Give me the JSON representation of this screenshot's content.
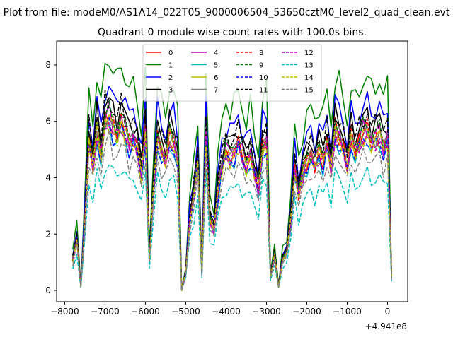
{
  "figure": {
    "suptitle": "Plot from file: modeM0/AS1A14_022T05_9000006504_53650cztM0_level2_quad_clean.evt",
    "offset_label": "+4.941e8"
  },
  "chart_data": {
    "type": "line",
    "title": "Quadrant 0 module wise count rates with 100.0s bins.",
    "xlabel": "",
    "ylabel": "",
    "x_offset": 494100000,
    "xlim": [
      -8200,
      500
    ],
    "ylim": [
      -0.4,
      8.85
    ],
    "xticks": [
      -8000,
      -7000,
      -6000,
      -5000,
      -4000,
      -3000,
      -2000,
      -1000,
      0
    ],
    "xtick_labels": [
      "−8000",
      "−7000",
      "−6000",
      "−5000",
      "−4000",
      "−3000",
      "−2000",
      "−1000",
      "0"
    ],
    "yticks": [
      0,
      2,
      4,
      6,
      8
    ],
    "ytick_labels": [
      "0",
      "2",
      "4",
      "6",
      "8"
    ],
    "grid": false,
    "legend_position": "top-center",
    "legend_columns": 4,
    "profile": {
      "note": "Shared shape of the light curves (x in data units, relative to offset)",
      "x": [
        -7800,
        -7700,
        -7600,
        -7500,
        -7400,
        -7300,
        -7200,
        -7100,
        -7000,
        -6900,
        -6800,
        -6700,
        -6600,
        -6500,
        -6400,
        -6300,
        -6200,
        -6100,
        -6000,
        -5900,
        -5800,
        -5700,
        -5600,
        -5500,
        -5400,
        -5300,
        -5200,
        -5100,
        -5000,
        -4900,
        -4800,
        -4700,
        -4600,
        -4500,
        -4400,
        -4300,
        -4200,
        -4100,
        -4000,
        -3900,
        -3800,
        -3700,
        -3600,
        -3500,
        -3400,
        -3300,
        -3200,
        -3100,
        -3000,
        -2900,
        -2800,
        -2700,
        -2600,
        -2500,
        -2400,
        -2300,
        -2200,
        -2100,
        -2000,
        -1900,
        -1800,
        -1700,
        -1600,
        -1500,
        -1400,
        -1300,
        -1200,
        -1100,
        -1000,
        -900,
        -800,
        -700,
        -600,
        -500,
        -400,
        -300,
        -200,
        -100,
        0,
        100
      ],
      "y": [
        0.17,
        0.3,
        0.02,
        0.4,
        0.85,
        0.72,
        0.92,
        0.78,
        0.97,
        1.0,
        0.93,
        0.9,
        0.97,
        0.92,
        0.85,
        0.88,
        0.82,
        0.68,
        0.92,
        0.18,
        0.58,
        0.88,
        0.8,
        0.75,
        0.88,
        0.85,
        0.75,
        0.0,
        0.1,
        0.4,
        0.55,
        0.75,
        0.1,
        0.9,
        0.4,
        0.35,
        0.58,
        0.72,
        0.8,
        0.78,
        0.8,
        0.85,
        0.78,
        0.72,
        0.78,
        0.68,
        0.58,
        0.82,
        0.85,
        0.08,
        0.2,
        0.02,
        0.18,
        0.22,
        0.4,
        0.7,
        0.55,
        0.68,
        0.75,
        0.78,
        0.72,
        0.8,
        0.75,
        0.85,
        0.7,
        0.92,
        0.88,
        0.82,
        0.72,
        0.88,
        0.8,
        0.85,
        0.9,
        0.92,
        0.85,
        0.88,
        0.9,
        0.82,
        0.88,
        0.07
      ]
    },
    "series": [
      {
        "name": "0",
        "color": "#ff0000",
        "dashed": false,
        "scale": 6.1,
        "phase": 0.7
      },
      {
        "name": "1",
        "color": "#008000",
        "dashed": false,
        "scale": 8.3,
        "phase": 1.9
      },
      {
        "name": "2",
        "color": "#0000ff",
        "dashed": false,
        "scale": 7.3,
        "phase": 3.1
      },
      {
        "name": "3",
        "color": "#000000",
        "dashed": false,
        "scale": 6.8,
        "phase": 4.3
      },
      {
        "name": "4",
        "color": "#bf00bf",
        "dashed": false,
        "scale": 6.3,
        "phase": 5.5
      },
      {
        "name": "5",
        "color": "#00bfbf",
        "dashed": false,
        "scale": 5.8,
        "phase": 0.2
      },
      {
        "name": "6",
        "color": "#bfbf00",
        "dashed": false,
        "scale": 6.0,
        "phase": 1.4
      },
      {
        "name": "7",
        "color": "#808080",
        "dashed": false,
        "scale": 6.2,
        "phase": 2.6
      },
      {
        "name": "8",
        "color": "#ff0000",
        "dashed": true,
        "scale": 6.2,
        "phase": 3.8
      },
      {
        "name": "9",
        "color": "#008000",
        "dashed": true,
        "scale": 6.4,
        "phase": 5.0
      },
      {
        "name": "10",
        "color": "#0000ff",
        "dashed": true,
        "scale": 5.9,
        "phase": 6.2
      },
      {
        "name": "11",
        "color": "#000000",
        "dashed": true,
        "scale": 6.8,
        "phase": 0.9
      },
      {
        "name": "12",
        "color": "#bf00bf",
        "dashed": true,
        "scale": 6.0,
        "phase": 2.1
      },
      {
        "name": "13",
        "color": "#00bfbf",
        "dashed": true,
        "scale": 4.5,
        "phase": 3.3
      },
      {
        "name": "14",
        "color": "#bfbf00",
        "dashed": true,
        "scale": 6.1,
        "phase": 4.5
      },
      {
        "name": "15",
        "color": "#808080",
        "dashed": true,
        "scale": 5.3,
        "phase": 5.7
      }
    ]
  }
}
